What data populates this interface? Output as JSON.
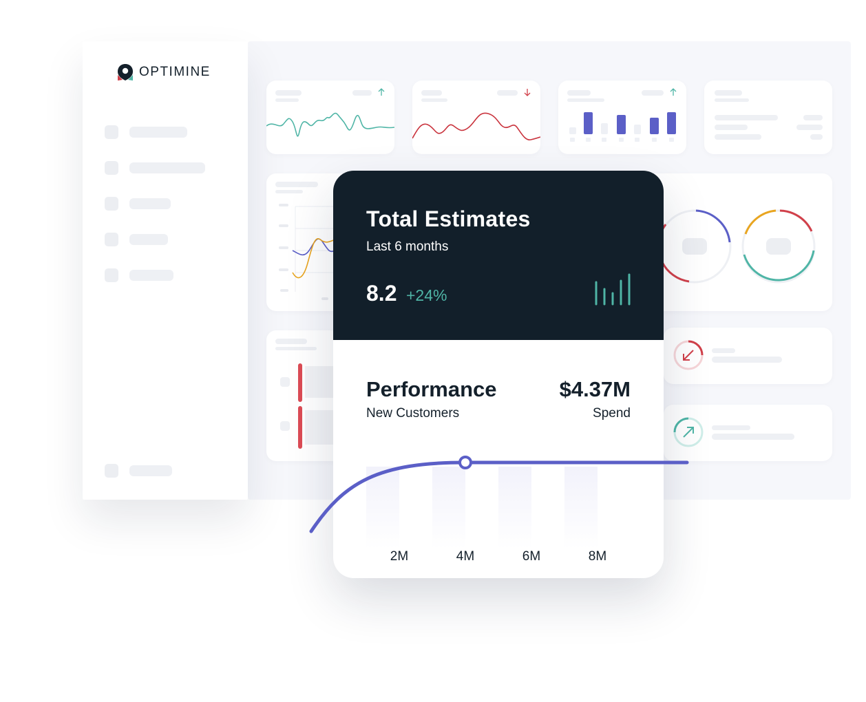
{
  "brand": {
    "name": "OPTIMINE",
    "colors": {
      "accent": "#5b5fc7",
      "dark": "#121f2a",
      "positive": "#4fb5a6",
      "negative": "#d1404a"
    }
  },
  "sidebar": {
    "icons": [
      "placeholder-icon",
      "placeholder-icon",
      "placeholder-icon",
      "placeholder-icon",
      "placeholder-icon",
      "placeholder-icon"
    ]
  },
  "estimates": {
    "title": "Total Estimates",
    "period": "Last 6 months",
    "value": "8.2",
    "change": "+24%"
  },
  "performance": {
    "title": "Performance",
    "subtitle": "New Customers",
    "value": "$4.37M",
    "value_label": "Spend"
  },
  "chart_data": {
    "type": "line",
    "categories": [
      "2M",
      "4M",
      "6M",
      "8M"
    ],
    "title": "",
    "xlabel": "",
    "ylabel": ""
  }
}
